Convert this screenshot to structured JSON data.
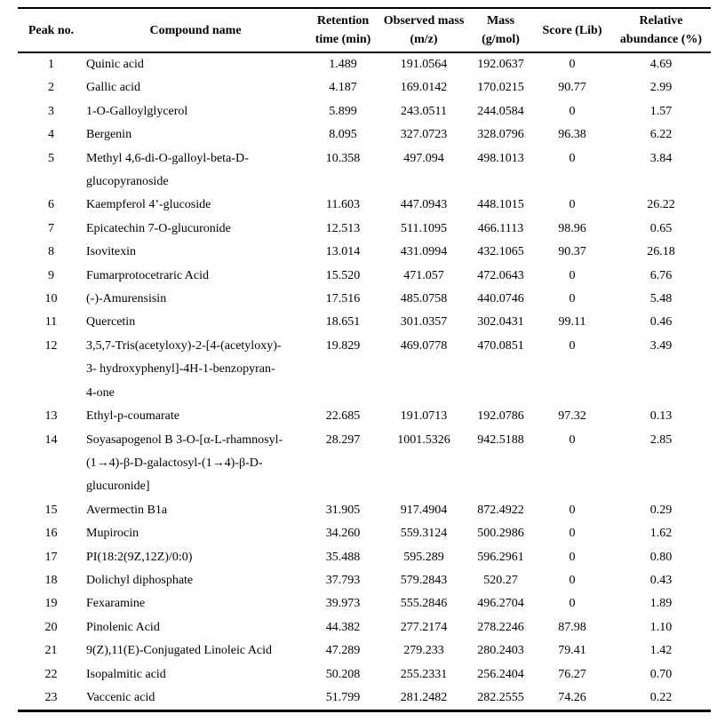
{
  "table": {
    "columns": [
      {
        "key": "peak",
        "label": "Peak no."
      },
      {
        "key": "compound",
        "label": "Compound name"
      },
      {
        "key": "retention",
        "label": "Retention\ntime (min)"
      },
      {
        "key": "observed",
        "label": "Observed mass\n(m/z)"
      },
      {
        "key": "mass",
        "label": "Mass\n(g/mol)"
      },
      {
        "key": "score",
        "label": "Score (Lib)"
      },
      {
        "key": "abundance",
        "label": "Relative\nabundance (%)"
      }
    ],
    "rows": [
      {
        "peak": "1",
        "compound": "Quinic acid",
        "retention": "1.489",
        "observed": "191.0564",
        "mass": "192.0637",
        "score": "0",
        "abundance": "4.69"
      },
      {
        "peak": "2",
        "compound": "Gallic acid",
        "retention": "4.187",
        "observed": "169.0142",
        "mass": "170.0215",
        "score": "90.77",
        "abundance": "2.99"
      },
      {
        "peak": "3",
        "compound": "1-O-Galloylglycerol",
        "retention": "5.899",
        "observed": "243.0511",
        "mass": "244.0584",
        "score": "0",
        "abundance": "1.57"
      },
      {
        "peak": "4",
        "compound": "Bergenin",
        "retention": "8.095",
        "observed": "327.0723",
        "mass": "328.0796",
        "score": "96.38",
        "abundance": "6.22"
      },
      {
        "peak": "5",
        "compound": "Methyl 4,6-di-O-galloyl-beta-D-\nglucopyranoside",
        "retention": "10.358",
        "observed": "497.094",
        "mass": "498.1013",
        "score": "0",
        "abundance": "3.84"
      },
      {
        "peak": "6",
        "compound": "Kaempferol 4’-glucoside",
        "retention": "11.603",
        "observed": "447.0943",
        "mass": "448.1015",
        "score": "0",
        "abundance": "26.22"
      },
      {
        "peak": "7",
        "compound": "Epicatechin 7-O-glucuronide",
        "retention": "12.513",
        "observed": "511.1095",
        "mass": "466.1113",
        "score": "98.96",
        "abundance": "0.65"
      },
      {
        "peak": "8",
        "compound": "Isovitexin",
        "retention": "13.014",
        "observed": "431.0994",
        "mass": "432.1065",
        "score": "90.37",
        "abundance": "26.18"
      },
      {
        "peak": "9",
        "compound": "Fumarprotocetraric Acid",
        "retention": "15.520",
        "observed": "471.057",
        "mass": "472.0643",
        "score": "0",
        "abundance": "6.76"
      },
      {
        "peak": "10",
        "compound": "(-)-Amurensisin",
        "retention": "17.516",
        "observed": "485.0758",
        "mass": "440.0746",
        "score": "0",
        "abundance": "5.48"
      },
      {
        "peak": "11",
        "compound": "Quercetin",
        "retention": "18.651",
        "observed": "301.0357",
        "mass": "302.0431",
        "score": "99.11",
        "abundance": "0.46"
      },
      {
        "peak": "12",
        "compound": "3,5,7-Tris(acetyloxy)-2-[4-(acetyloxy)-\n3- hydroxyphenyl]-4H-1-benzopyran-\n4-one",
        "retention": "19.829",
        "observed": "469.0778",
        "mass": "470.0851",
        "score": "0",
        "abundance": "3.49"
      },
      {
        "peak": "13",
        "compound": "Ethyl-p-coumarate",
        "retention": "22.685",
        "observed": "191.0713",
        "mass": "192.0786",
        "score": "97.32",
        "abundance": "0.13"
      },
      {
        "peak": "14",
        "compound": "Soyasapogenol B 3-O-[α-L-rhamnosyl-\n(1→4)-β-D-galactosyl-(1→4)-β-D-\nglucuronide]",
        "retention": "28.297",
        "observed": "1001.5326",
        "mass": "942.5188",
        "score": "0",
        "abundance": "2.85"
      },
      {
        "peak": "15",
        "compound": "Avermectin B1a",
        "retention": "31.905",
        "observed": "917.4904",
        "mass": "872.4922",
        "score": "0",
        "abundance": "0.29"
      },
      {
        "peak": "16",
        "compound": "Mupirocin",
        "retention": "34.260",
        "observed": "559.3124",
        "mass": "500.2986",
        "score": "0",
        "abundance": "1.62"
      },
      {
        "peak": "17",
        "compound": "PI(18:2(9Z,12Z)/0:0)",
        "retention": "35.488",
        "observed": "595.289",
        "mass": "596.2961",
        "score": "0",
        "abundance": "0.80"
      },
      {
        "peak": "18",
        "compound": "Dolichyl diphosphate",
        "retention": "37.793",
        "observed": "579.2843",
        "mass": "520.27",
        "score": "0",
        "abundance": "0.43"
      },
      {
        "peak": "19",
        "compound": "Fexaramine",
        "retention": "39.973",
        "observed": "555.2846",
        "mass": "496.2704",
        "score": "0",
        "abundance": "1.89"
      },
      {
        "peak": "20",
        "compound": "Pinolenic Acid",
        "retention": "44.382",
        "observed": "277.2174",
        "mass": "278.2246",
        "score": "87.98",
        "abundance": "1.10"
      },
      {
        "peak": "21",
        "compound": "9(Z),11(E)-Conjugated Linoleic Acid",
        "retention": "47.289",
        "observed": "279.233",
        "mass": "280.2403",
        "score": "79.41",
        "abundance": "1.42"
      },
      {
        "peak": "22",
        "compound": "Isopalmitic acid",
        "retention": "50.208",
        "observed": "255.2331",
        "mass": "256.2404",
        "score": "76.27",
        "abundance": "0.70"
      },
      {
        "peak": "23",
        "compound": "Vaccenic acid",
        "retention": "51.799",
        "observed": "281.2482",
        "mass": "282.2555",
        "score": "74.26",
        "abundance": "0.22"
      }
    ]
  }
}
